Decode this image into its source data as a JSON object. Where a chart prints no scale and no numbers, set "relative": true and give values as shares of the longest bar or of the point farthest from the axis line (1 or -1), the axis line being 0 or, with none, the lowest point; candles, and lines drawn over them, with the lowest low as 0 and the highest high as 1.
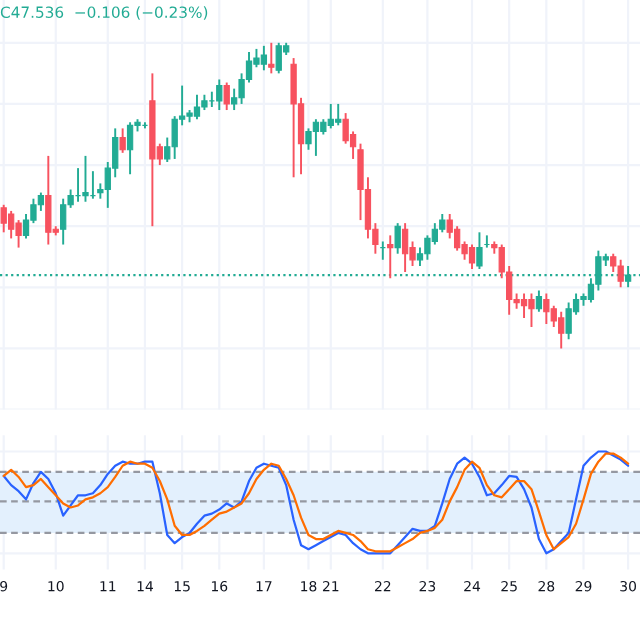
{
  "chart_data": [
    {
      "type": "candlestick",
      "relative": true,
      "grid": true,
      "tick_labels": false,
      "categories": [
        "9",
        null,
        null,
        null,
        null,
        null,
        null,
        "10",
        null,
        null,
        null,
        null,
        null,
        null,
        "11",
        null,
        null,
        null,
        null,
        "14",
        null,
        null,
        null,
        null,
        "15",
        null,
        null,
        null,
        null,
        "16",
        null,
        null,
        null,
        null,
        null,
        "17",
        null,
        null,
        null,
        null,
        null,
        "18",
        null,
        null,
        "21",
        null,
        null,
        null,
        null,
        null,
        null,
        "22",
        null,
        null,
        null,
        null,
        null,
        "23",
        null,
        null,
        null,
        null,
        null,
        "24",
        null,
        null,
        null,
        null,
        "25",
        null,
        null,
        null,
        null,
        "28",
        null,
        null,
        null,
        null,
        "29",
        null,
        null,
        null,
        null,
        null,
        "30"
      ],
      "ohlc": [
        [
          0.46,
          0.47,
          0.38,
          0.41
        ],
        [
          0.44,
          0.45,
          0.36,
          0.39
        ],
        [
          0.41,
          0.42,
          0.33,
          0.37
        ],
        [
          0.37,
          0.44,
          0.36,
          0.42
        ],
        [
          0.42,
          0.49,
          0.41,
          0.47
        ],
        [
          0.47,
          0.51,
          0.45,
          0.5
        ],
        [
          0.5,
          0.63,
          0.34,
          0.38
        ],
        [
          0.39,
          0.4,
          0.37,
          0.38
        ],
        [
          0.39,
          0.49,
          0.34,
          0.47
        ],
        [
          0.47,
          0.52,
          0.46,
          0.5
        ],
        [
          0.5,
          0.59,
          0.48,
          0.5
        ],
        [
          0.5,
          0.63,
          0.48,
          0.51
        ],
        [
          0.5,
          0.58,
          0.49,
          0.5
        ],
        [
          0.51,
          0.54,
          0.49,
          0.52
        ],
        [
          0.52,
          0.61,
          0.46,
          0.59
        ],
        [
          0.59,
          0.72,
          0.56,
          0.69
        ],
        [
          0.69,
          0.72,
          0.64,
          0.65
        ],
        [
          0.65,
          0.74,
          0.57,
          0.73
        ],
        [
          0.73,
          0.75,
          0.71,
          0.74
        ],
        [
          0.73,
          0.74,
          0.72,
          0.73
        ],
        [
          0.81,
          0.9,
          0.4,
          0.62
        ],
        [
          0.66,
          0.67,
          0.6,
          0.62
        ],
        [
          0.62,
          0.69,
          0.61,
          0.66
        ],
        [
          0.66,
          0.76,
          0.62,
          0.75
        ],
        [
          0.75,
          0.86,
          0.73,
          0.76
        ],
        [
          0.76,
          0.78,
          0.74,
          0.77
        ],
        [
          0.76,
          0.83,
          0.75,
          0.79
        ],
        [
          0.79,
          0.83,
          0.78,
          0.81
        ],
        [
          0.81,
          0.84,
          0.79,
          0.81
        ],
        [
          0.81,
          0.88,
          0.78,
          0.86
        ],
        [
          0.86,
          0.87,
          0.78,
          0.8
        ],
        [
          0.8,
          0.85,
          0.78,
          0.82
        ],
        [
          0.82,
          0.9,
          0.8,
          0.88
        ],
        [
          0.88,
          0.97,
          0.87,
          0.94
        ],
        [
          0.93,
          0.98,
          0.92,
          0.95
        ],
        [
          0.93,
          0.99,
          0.91,
          0.96
        ],
        [
          0.93,
          1.0,
          0.9,
          0.92
        ],
        [
          0.91,
          1.0,
          0.9,
          0.99
        ],
        [
          0.97,
          1.0,
          0.96,
          0.99
        ],
        [
          0.93,
          0.95,
          0.56,
          0.8
        ],
        [
          0.8,
          0.82,
          0.57,
          0.67
        ],
        [
          0.67,
          0.72,
          0.65,
          0.71
        ],
        [
          0.71,
          0.75,
          0.63,
          0.74
        ],
        [
          0.71,
          0.75,
          0.7,
          0.74
        ],
        [
          0.73,
          0.8,
          0.72,
          0.75
        ],
        [
          0.74,
          0.8,
          0.73,
          0.75
        ],
        [
          0.75,
          0.77,
          0.67,
          0.68
        ],
        [
          0.7,
          0.71,
          0.62,
          0.66
        ],
        [
          0.65,
          0.67,
          0.42,
          0.52
        ],
        [
          0.52,
          0.56,
          0.36,
          0.39
        ],
        [
          0.39,
          0.41,
          0.31,
          0.34
        ],
        [
          0.33,
          0.35,
          0.29,
          0.33
        ],
        [
          0.34,
          0.37,
          0.23,
          0.33
        ],
        [
          0.33,
          0.41,
          0.31,
          0.4
        ],
        [
          0.39,
          0.41,
          0.25,
          0.31
        ],
        [
          0.33,
          0.35,
          0.27,
          0.29
        ],
        [
          0.29,
          0.33,
          0.27,
          0.31
        ],
        [
          0.31,
          0.37,
          0.29,
          0.36
        ],
        [
          0.35,
          0.41,
          0.34,
          0.39
        ],
        [
          0.39,
          0.44,
          0.38,
          0.42
        ],
        [
          0.42,
          0.44,
          0.36,
          0.38
        ],
        [
          0.39,
          0.4,
          0.32,
          0.33
        ],
        [
          0.34,
          0.35,
          0.29,
          0.31
        ],
        [
          0.33,
          0.34,
          0.26,
          0.28
        ],
        [
          0.27,
          0.38,
          0.26,
          0.33
        ],
        [
          0.34,
          0.37,
          0.33,
          0.34
        ],
        [
          0.34,
          0.35,
          0.31,
          0.33
        ],
        [
          0.33,
          0.34,
          0.23,
          0.25
        ],
        [
          0.25,
          0.27,
          0.11,
          0.16
        ],
        [
          0.16,
          0.18,
          0.13,
          0.15
        ],
        [
          0.16,
          0.18,
          0.1,
          0.14
        ],
        [
          0.16,
          0.18,
          0.07,
          0.13
        ],
        [
          0.13,
          0.19,
          0.12,
          0.17
        ],
        [
          0.16,
          0.18,
          0.08,
          0.12
        ],
        [
          0.13,
          0.14,
          0.07,
          0.09
        ],
        [
          0.1,
          0.12,
          0.0,
          0.05
        ],
        [
          0.05,
          0.15,
          0.03,
          0.13
        ],
        [
          0.12,
          0.18,
          0.11,
          0.16
        ],
        [
          0.16,
          0.18,
          0.14,
          0.17
        ],
        [
          0.16,
          0.23,
          0.15,
          0.21
        ],
        [
          0.21,
          0.32,
          0.19,
          0.3
        ],
        [
          0.29,
          0.31,
          0.27,
          0.3
        ],
        [
          0.3,
          0.31,
          0.25,
          0.27
        ],
        [
          0.27,
          0.29,
          0.2,
          0.22
        ],
        [
          0.22,
          0.27,
          0.2,
          0.24
        ]
      ],
      "colors": [
        "#f7525f",
        "#f7525f",
        "#f7525f",
        "#22ab94",
        "#22ab94",
        "#22ab94",
        "#f7525f",
        "#f7525f",
        "#22ab94",
        "#22ab94",
        "#22ab94",
        "#22ab94",
        "#22ab94",
        "#22ab94",
        "#22ab94",
        "#22ab94",
        "#f7525f",
        "#22ab94",
        "#22ab94",
        "#22ab94",
        "#f7525f",
        "#f7525f",
        "#22ab94",
        "#22ab94",
        "#22ab94",
        "#22ab94",
        "#22ab94",
        "#22ab94",
        "#22ab94",
        "#22ab94",
        "#f7525f",
        "#22ab94",
        "#22ab94",
        "#22ab94",
        "#22ab94",
        "#22ab94",
        "#f7525f",
        "#22ab94",
        "#22ab94",
        "#f7525f",
        "#f7525f",
        "#22ab94",
        "#22ab94",
        "#22ab94",
        "#22ab94",
        "#22ab94",
        "#f7525f",
        "#f7525f",
        "#f7525f",
        "#f7525f",
        "#f7525f",
        "#22ab94",
        "#f7525f",
        "#22ab94",
        "#f7525f",
        "#f7525f",
        "#22ab94",
        "#22ab94",
        "#22ab94",
        "#22ab94",
        "#f7525f",
        "#f7525f",
        "#f7525f",
        "#f7525f",
        "#22ab94",
        "#22ab94",
        "#f7525f",
        "#f7525f",
        "#f7525f",
        "#f7525f",
        "#f7525f",
        "#f7525f",
        "#22ab94",
        "#f7525f",
        "#f7525f",
        "#f7525f",
        "#22ab94",
        "#22ab94",
        "#22ab94",
        "#22ab94",
        "#22ab94",
        "#22ab94",
        "#f7525f",
        "#f7525f",
        "#22ab94"
      ],
      "ref_lines": [
        {
          "axis": "y",
          "value": 0.24,
          "color": "#22ab94",
          "line_style": "dotted"
        }
      ],
      "annotations": [
        "C47.536  −0.106 (−0.23%)"
      ]
    },
    {
      "type": "line",
      "relative": true,
      "grid": true,
      "tick_labels": "x",
      "legend": false,
      "categories": [
        "9",
        null,
        null,
        null,
        null,
        null,
        null,
        "10",
        null,
        null,
        null,
        null,
        null,
        null,
        "11",
        null,
        null,
        null,
        null,
        "14",
        null,
        null,
        null,
        null,
        "15",
        null,
        null,
        null,
        null,
        "16",
        null,
        null,
        null,
        null,
        null,
        "17",
        null,
        null,
        null,
        null,
        null,
        "18",
        null,
        null,
        "21",
        null,
        null,
        null,
        null,
        null,
        null,
        "22",
        null,
        null,
        null,
        null,
        null,
        "23",
        null,
        null,
        null,
        null,
        null,
        "24",
        null,
        null,
        null,
        null,
        "25",
        null,
        null,
        null,
        null,
        "28",
        null,
        null,
        null,
        null,
        "29",
        null,
        null,
        null,
        null,
        null,
        "30"
      ],
      "series": [
        {
          "color": "#2962ff",
          "values": [
            0.76,
            0.67,
            0.61,
            0.53,
            0.69,
            0.8,
            0.73,
            0.59,
            0.37,
            0.47,
            0.57,
            0.57,
            0.59,
            0.67,
            0.78,
            0.86,
            0.9,
            0.88,
            0.88,
            0.9,
            0.9,
            0.59,
            0.18,
            0.1,
            0.16,
            0.2,
            0.29,
            0.37,
            0.39,
            0.43,
            0.49,
            0.45,
            0.51,
            0.71,
            0.84,
            0.88,
            0.86,
            0.84,
            0.67,
            0.33,
            0.08,
            0.04,
            0.08,
            0.12,
            0.16,
            0.2,
            0.18,
            0.1,
            0.04,
            0,
            0,
            0,
            0,
            0.08,
            0.16,
            0.24,
            0.22,
            0.22,
            0.27,
            0.49,
            0.73,
            0.88,
            0.94,
            0.88,
            0.75,
            0.57,
            0.59,
            0.67,
            0.76,
            0.75,
            0.63,
            0.45,
            0.14,
            0,
            0.04,
            0.12,
            0.2,
            0.53,
            0.86,
            0.94,
            1.0,
            1.0,
            0.96,
            0.92,
            0.86
          ]
        },
        {
          "color": "#ff6d00",
          "values": [
            0.76,
            0.82,
            0.75,
            0.65,
            0.67,
            0.73,
            0.65,
            0.57,
            0.49,
            0.45,
            0.47,
            0.53,
            0.55,
            0.59,
            0.65,
            0.75,
            0.86,
            0.9,
            0.88,
            0.88,
            0.84,
            0.71,
            0.53,
            0.27,
            0.18,
            0.18,
            0.22,
            0.27,
            0.33,
            0.39,
            0.41,
            0.45,
            0.49,
            0.59,
            0.73,
            0.82,
            0.88,
            0.86,
            0.73,
            0.57,
            0.35,
            0.18,
            0.14,
            0.14,
            0.18,
            0.22,
            0.2,
            0.18,
            0.12,
            0.04,
            0.02,
            0.02,
            0.02,
            0.06,
            0.1,
            0.14,
            0.2,
            0.22,
            0.25,
            0.33,
            0.51,
            0.65,
            0.82,
            0.9,
            0.84,
            0.67,
            0.57,
            0.55,
            0.63,
            0.71,
            0.71,
            0.63,
            0.41,
            0.18,
            0.04,
            0.1,
            0.16,
            0.29,
            0.53,
            0.78,
            0.9,
            0.98,
            0.98,
            0.94,
            0.88
          ]
        }
      ],
      "bands": [
        {
          "axis": "y",
          "from": 0.2,
          "to": 0.8,
          "color": "#e3f0fd"
        }
      ],
      "ref_lines": [
        {
          "axis": "y",
          "value": 0.8,
          "color": "#9598a1",
          "line_style": "dashed"
        },
        {
          "axis": "y",
          "value": 0.51,
          "color": "#9598a1",
          "line_style": "dashed"
        },
        {
          "axis": "y",
          "value": 0.2,
          "color": "#9598a1",
          "line_style": "dashed"
        }
      ]
    }
  ]
}
